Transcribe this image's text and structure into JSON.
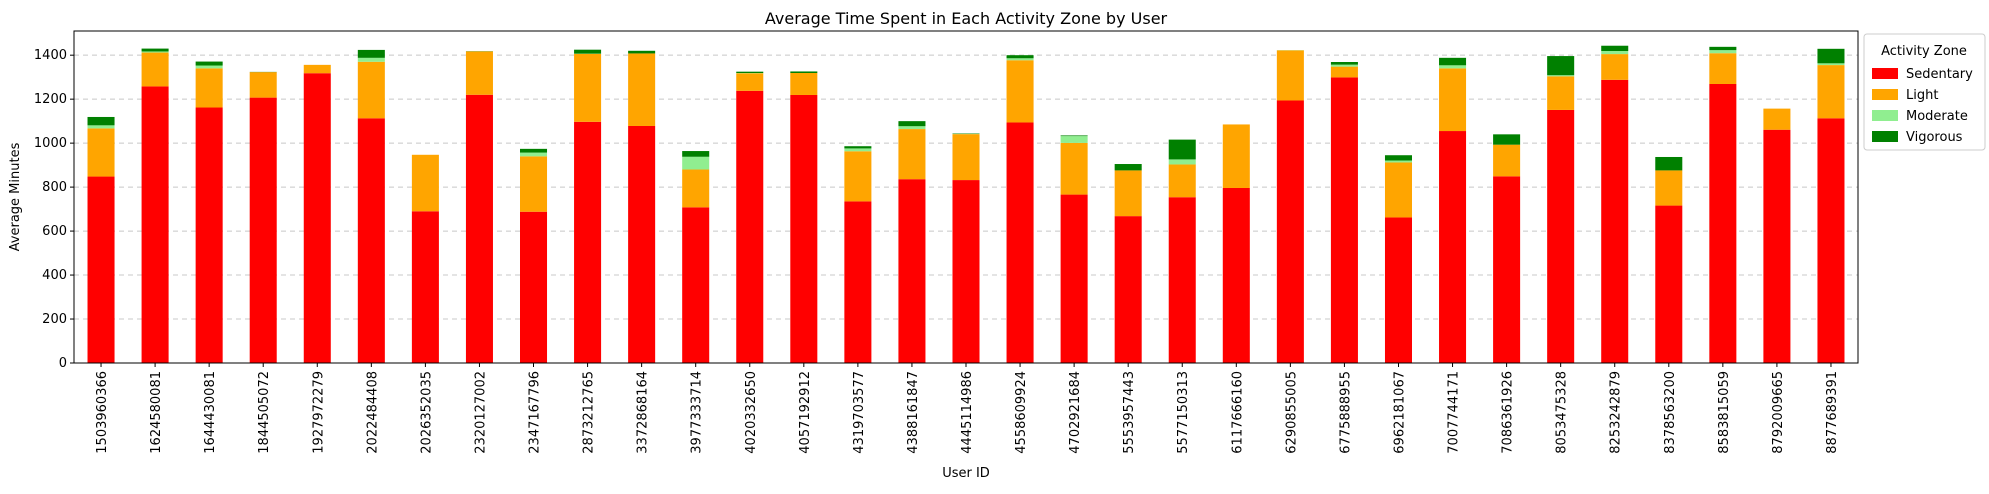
{
  "chart_data": {
    "type": "bar",
    "stacked": true,
    "title": "Average Time Spent in Each Activity Zone by User",
    "xlabel": "User ID",
    "ylabel": "Average Minutes",
    "ylim": [
      0,
      1510
    ],
    "yticks": [
      0,
      200,
      400,
      600,
      800,
      1000,
      1200,
      1400
    ],
    "grid": "horizontal dashed",
    "legend_title": "Activity Zone",
    "legend_position": "outside upper-right",
    "categories": [
      "1503960366",
      "1624580081",
      "1644430081",
      "1844505072",
      "1927972279",
      "2022484408",
      "2026352035",
      "2320127002",
      "2347167796",
      "2873212765",
      "3372868164",
      "3977333714",
      "4020332650",
      "4057192912",
      "4319703577",
      "4388161847",
      "4445114986",
      "4558609924",
      "4702921684",
      "5553957443",
      "5577150313",
      "6117666160",
      "6290855005",
      "6775888955",
      "6962181067",
      "7007744171",
      "7086361926",
      "8053475328",
      "8253242879",
      "8378563200",
      "8583815059",
      "8792009665",
      "8877689391"
    ],
    "series": [
      {
        "name": "Sedentary",
        "color": "#ff0000",
        "values": [
          848,
          1258,
          1162,
          1207,
          1318,
          1113,
          690,
          1220,
          688,
          1097,
          1078,
          708,
          1238,
          1219,
          735,
          836,
          832,
          1094,
          766,
          668,
          754,
          796,
          1194,
          1299,
          662,
          1055,
          849,
          1151,
          1288,
          716,
          1269,
          1061,
          1113
        ]
      },
      {
        "name": "Light",
        "color": "#ffa500",
        "values": [
          219,
          154,
          178,
          116,
          38,
          257,
          257,
          197,
          252,
          309,
          330,
          172,
          80,
          100,
          228,
          228,
          209,
          283,
          235,
          208,
          149,
          289,
          228,
          49,
          250,
          285,
          144,
          153,
          117,
          160,
          140,
          96,
          242
        ]
      },
      {
        "name": "Moderate",
        "color": "#90ee90",
        "values": [
          14,
          5,
          13,
          0,
          0,
          18,
          0,
          0,
          17,
          1,
          0,
          58,
          1,
          0,
          13,
          13,
          1,
          9,
          31,
          0,
          23,
          0,
          1,
          9,
          9,
          14,
          0,
          5,
          14,
          0,
          14,
          0,
          8
        ]
      },
      {
        "name": "Vigorous",
        "color": "#008000",
        "values": [
          38,
          13,
          18,
          1,
          0,
          36,
          0,
          1,
          17,
          18,
          12,
          26,
          6,
          7,
          10,
          23,
          2,
          14,
          3,
          29,
          90,
          0,
          0,
          12,
          24,
          34,
          47,
          87,
          24,
          61,
          15,
          0,
          66
        ]
      }
    ]
  }
}
